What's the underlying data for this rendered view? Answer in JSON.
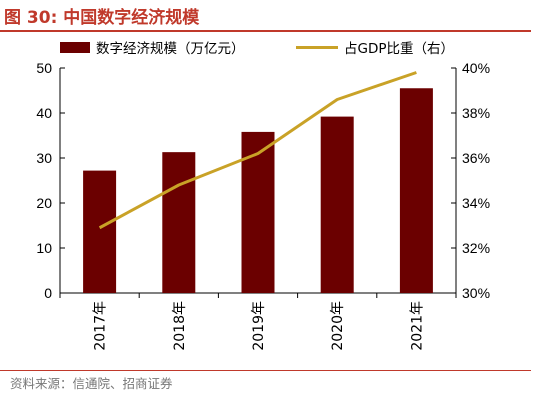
{
  "title": "图 30:  中国数字经济规模",
  "source": "资料来源：信通院、招商证券",
  "colors": {
    "bar": "#6b0000",
    "line": "#c9a227",
    "title": "#c0392b"
  },
  "chart_data": {
    "type": "bar+line",
    "categories": [
      "2017年",
      "2018年",
      "2019年",
      "2020年",
      "2021年"
    ],
    "series": [
      {
        "name": "数字经济规模（万亿元）",
        "type": "bar",
        "axis": "left",
        "values": [
          27.2,
          31.3,
          35.8,
          39.2,
          45.5
        ]
      },
      {
        "name": "占GDP比重（右）",
        "type": "line",
        "axis": "right",
        "values": [
          32.9,
          34.8,
          36.2,
          38.6,
          39.8
        ]
      }
    ],
    "y_left": {
      "min": 0,
      "max": 50,
      "ticks": [
        "0",
        "10",
        "20",
        "30",
        "40",
        "50"
      ]
    },
    "y_right": {
      "min": 30,
      "max": 40,
      "ticks": [
        "30%",
        "32%",
        "34%",
        "36%",
        "38%",
        "40%"
      ]
    },
    "legend_position": "top",
    "grid": false
  }
}
